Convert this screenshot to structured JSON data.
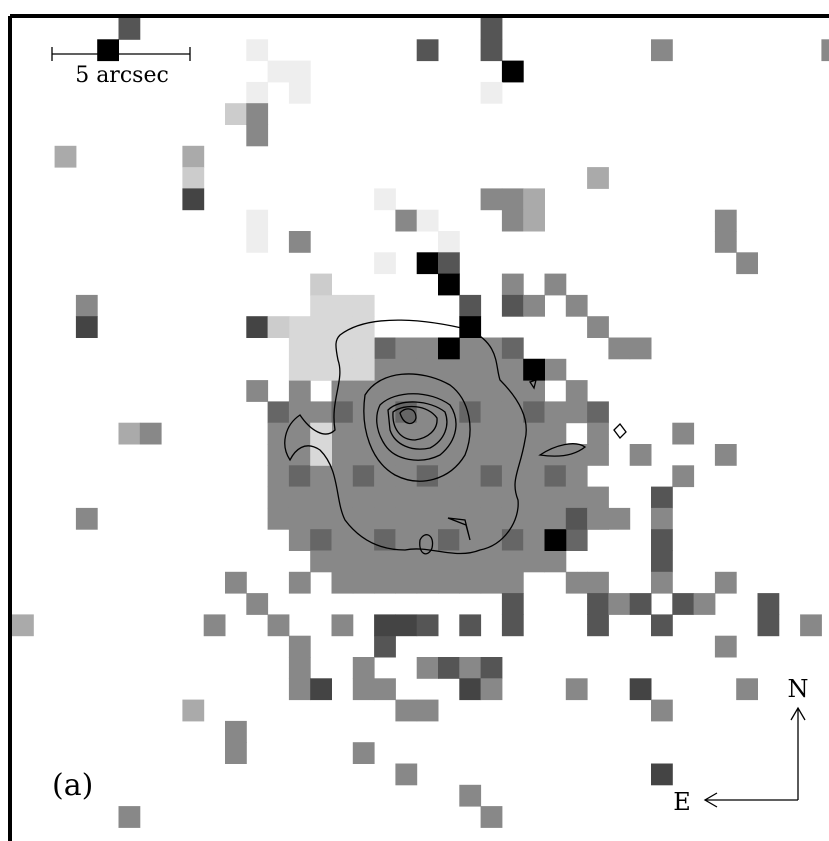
{
  "scale_bar": {
    "label": "5 arcsec"
  },
  "panel_label": "(a)",
  "compass": {
    "north": "N",
    "east": "E"
  }
}
